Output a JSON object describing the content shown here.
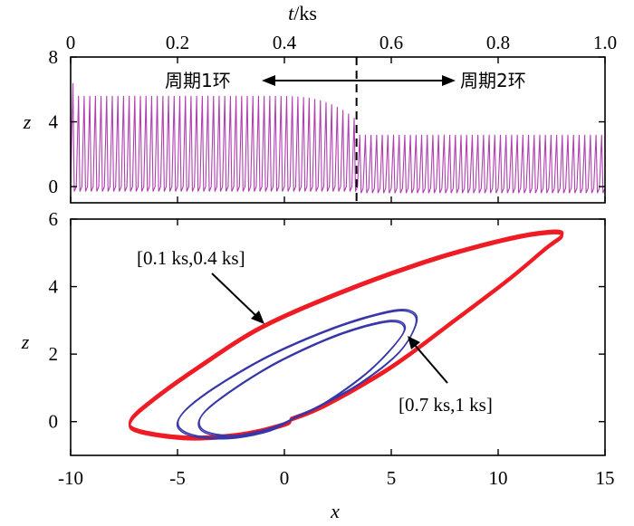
{
  "chart_data": [
    {
      "type": "line",
      "panel": "top",
      "xlabel_var": "t",
      "xlabel_unit": "/ks",
      "ylabel": "z",
      "x_ticks": [
        "0",
        "0.2",
        "0.4",
        "0.6",
        "0.8",
        "1.0"
      ],
      "y_ticks": [
        "0",
        "4",
        "8"
      ],
      "xlim": [
        0,
        1.0
      ],
      "ylim": [
        -1,
        8
      ],
      "series": [
        {
          "color": "#b040b0",
          "segments": [
            {
              "t_range": [
                0,
                0.38
              ],
              "spike_max": 5.6,
              "spike_min": -0.3,
              "baseline": 0.0,
              "first_spike": 6.4
            },
            {
              "t_range": [
                0.38,
                0.54
              ],
              "spike_max_start": 5.6,
              "spike_max_end": 4.0,
              "spike_min": -0.3
            },
            {
              "t_range": [
                0.54,
                1.0
              ],
              "spike_max": 3.2,
              "spike_min": -0.4,
              "baseline": -0.1
            }
          ],
          "spike_count": 95
        }
      ],
      "divider_t": 0.535,
      "annotations": {
        "left": "周期1环",
        "right": "周期2环"
      }
    },
    {
      "type": "line",
      "panel": "bottom",
      "xlabel": "x",
      "ylabel": "z",
      "x_ticks": [
        "-10",
        "-5",
        "0",
        "5",
        "10",
        "15"
      ],
      "y_ticks": [
        "0",
        "2",
        "4",
        "6"
      ],
      "xlim": [
        -10,
        15
      ],
      "ylim": [
        -1,
        6
      ],
      "series": [
        {
          "label": "[0.1 ks,0.4 ks]",
          "color": "#ee1c24",
          "orbit": "period-1"
        },
        {
          "label": "[0.7 ks,1 ks]",
          "color": "#3737a8",
          "orbit": "period-2"
        }
      ],
      "annotations": {
        "red_label": "[0.1 ks,0.4 ks]",
        "blue_label": "[0.7 ks,1 ks]"
      }
    }
  ]
}
